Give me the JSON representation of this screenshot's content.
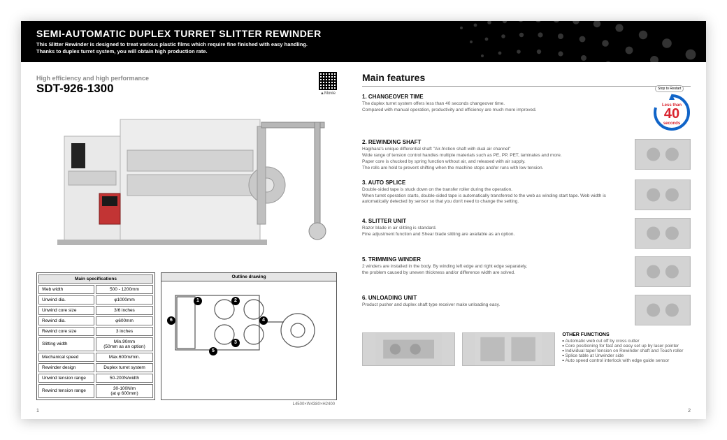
{
  "header": {
    "title": "SEMI-AUTOMATIC DUPLEX TURRET SLITTER REWINDER",
    "subtitle_l1": "This Slitter Rewinder is designed to treat various plastic films which require fine finished with easy handling.",
    "subtitle_l2": "Thanks to duplex turret system, you will obtain high production rate."
  },
  "left": {
    "subhead": "High efficiency and high performance",
    "model": "SDT-926-1300",
    "qr_label": "▲Movie",
    "outline_title": "Outline drawing",
    "outline_caption": "L4500×W4380×H2400",
    "spec_title": "Main specifications",
    "specs": [
      {
        "k": "Web width",
        "v": "500 - 1200mm"
      },
      {
        "k": "Unwind dia.",
        "v": "φ1000mm"
      },
      {
        "k": "Unwind core size",
        "v": "3/6 inches"
      },
      {
        "k": "Rewind dia.",
        "v": "φ600mm"
      },
      {
        "k": "Rewind core size",
        "v": "3 inches"
      },
      {
        "k": "Slitting width",
        "v": "Min.90mm\n(50mm as an option)"
      },
      {
        "k": "Mechanical speed",
        "v": "Max.600m/min."
      },
      {
        "k": "Rewinder design",
        "v": "Duplex turret system"
      },
      {
        "k": "Unwind tension range",
        "v": "50-200N/width"
      },
      {
        "k": "Rewind tension range",
        "v": "30-100N/m\n(at φ 600mm)"
      }
    ]
  },
  "right": {
    "title": "Main features",
    "timer": {
      "top": "Less than",
      "num": "40",
      "unit": "seconds",
      "tag": "Stop to Restart"
    },
    "features": [
      {
        "t": "1. CHANGEOVER TIME",
        "d": [
          "The duplex turret system offers less than 40 seconds changeover time.",
          "Compared with manual operation, productivity and efficiency are much more improved."
        ]
      },
      {
        "t": "2. REWINDING SHAFT",
        "d": [
          "Hagihara's unique differential shaft \"Air-friction shaft with dual air channel\"",
          "Wide range of tension control handles multiple materials such as PE, PP, PET, laminates and more.",
          "Paper core is chucked by spring function without air, and released with air supply.",
          "The rolls are held to prevent shifting when the machine stops and/or runs with low tension."
        ]
      },
      {
        "t": "3. AUTO SPLICE",
        "d": [
          "Double-sided tape is stuck down on the transfer roller during the operation.",
          "When turret operation starts, double-sided tape is automatically transferred to the web as winding start tape. Web width is automatically detected by sensor so that you don't need to change the setting."
        ]
      },
      {
        "t": "4. SLITTER UNIT",
        "d": [
          "Razor blade in air slitting is standard.",
          "Fine adjustment function and Shear blade slitting are available as an option."
        ]
      },
      {
        "t": "5. TRIMMING WINDER",
        "d": [
          "2 winders are installed in the body. By winding left edge and right edge separately,",
          "the problem caused by uneven thickness and/or difference width are solved."
        ]
      },
      {
        "t": "6. UNLOADING UNIT",
        "d": [
          "Product pusher and duplex shaft type receiver make unloading easy."
        ]
      }
    ],
    "other_title": "OTHER FUNCTIONS",
    "other": [
      "Automatic web cut off by cross cutter",
      "Core positioning for fast and easy set up by laser pointer",
      "Individual taper tension on Rewinder shaft and Touch roller",
      "Splice table at Unwinder side",
      "Auto speed control interlock with edge guide sensor"
    ]
  },
  "pagenum_left": "1",
  "pagenum_right": "2",
  "colors": {
    "timer_num": "#d9232e",
    "timer_ring": "#1064c8"
  }
}
